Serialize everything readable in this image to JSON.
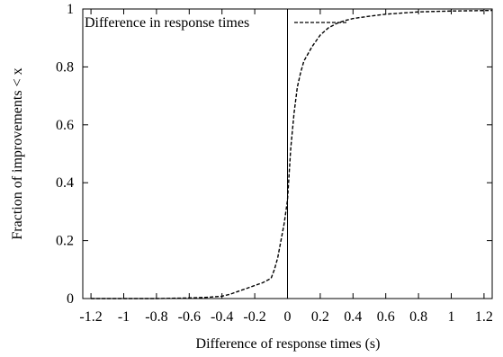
{
  "chart_data": {
    "type": "line",
    "xlabel": "Difference of response times (s)",
    "ylabel": "Fraction of improvements < x",
    "xlim": [
      -1.25,
      1.25
    ],
    "ylim": [
      0,
      1
    ],
    "x_ticks": [
      "-1.2",
      "-1",
      "-0.8",
      "-0.6",
      "-0.4",
      "-0.2",
      "0",
      "0.2",
      "0.4",
      "0.6",
      "0.8",
      "1",
      "1.2"
    ],
    "x_tick_values": [
      -1.2,
      -1,
      -0.8,
      -0.6,
      -0.4,
      -0.2,
      0,
      0.2,
      0.4,
      0.6,
      0.8,
      1,
      1.2
    ],
    "y_ticks": [
      "0",
      "0.2",
      "0.4",
      "0.6",
      "0.8",
      "1"
    ],
    "y_tick_values": [
      0,
      0.2,
      0.4,
      0.6,
      0.8,
      1
    ],
    "grid": false,
    "legend_position": "top-left",
    "reference_line_x": 0,
    "series": [
      {
        "name": "Difference in response times",
        "style": "dashed",
        "color": "#000000",
        "x": [
          -1.2,
          -0.8,
          -0.6,
          -0.5,
          -0.4,
          -0.35,
          -0.3,
          -0.25,
          -0.2,
          -0.15,
          -0.1,
          -0.08,
          -0.06,
          -0.04,
          -0.02,
          -0.01,
          0,
          0.01,
          0.02,
          0.04,
          0.06,
          0.08,
          0.1,
          0.15,
          0.2,
          0.25,
          0.3,
          0.35,
          0.4,
          0.5,
          0.6,
          0.8,
          1.0,
          1.25
        ],
        "y": [
          0,
          0,
          0.002,
          0.004,
          0.008,
          0.015,
          0.025,
          0.035,
          0.045,
          0.055,
          0.07,
          0.1,
          0.14,
          0.2,
          0.26,
          0.3,
          0.34,
          0.43,
          0.52,
          0.64,
          0.73,
          0.78,
          0.82,
          0.87,
          0.91,
          0.935,
          0.95,
          0.96,
          0.967,
          0.975,
          0.982,
          0.99,
          0.993,
          0.995
        ]
      }
    ]
  }
}
